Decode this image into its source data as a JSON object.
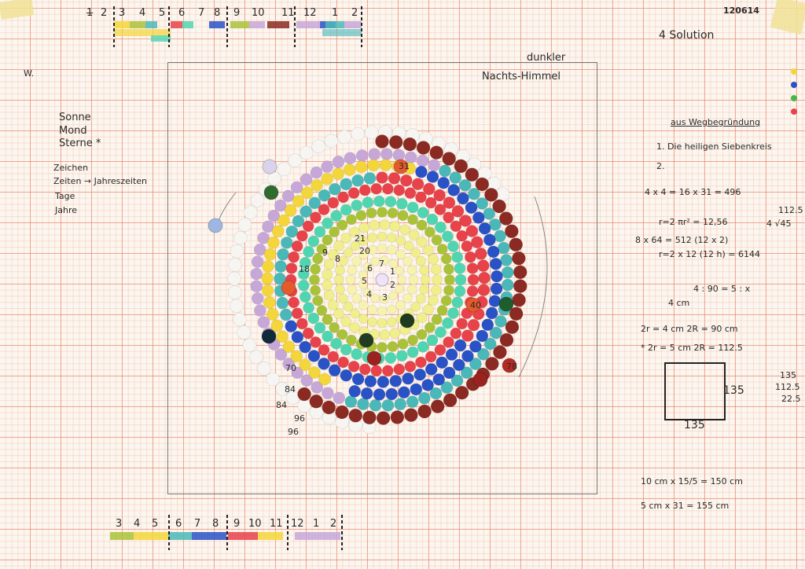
{
  "top_timeline": {
    "labels": [
      "1",
      "2",
      "3",
      "4",
      "5",
      "6",
      "7",
      "8",
      "9",
      "10",
      "11",
      "12",
      "1",
      "2"
    ],
    "struck_label": "1"
  },
  "bottom_timeline": {
    "labels": [
      "3",
      "4",
      "5",
      "6",
      "7",
      "8",
      "9",
      "10",
      "11",
      "12",
      "1",
      "2"
    ]
  },
  "header": {
    "date": "120614",
    "title": "4 Solution",
    "corner_note": "W."
  },
  "frame": {
    "label_1": "dunkler",
    "label_2": "Nachts-Himmel"
  },
  "left_notes": {
    "items": [
      "Sonne",
      "Mond",
      "Sterne *"
    ],
    "signs": [
      "Zeichen",
      "Zeiten → Jahreszeiten",
      "Tage",
      "Jahre"
    ]
  },
  "ring_numbers": [
    "21",
    "20",
    "8",
    "7",
    "6",
    "5",
    "4",
    "3",
    "2",
    "1",
    "9",
    "18",
    "31",
    "40",
    "70",
    "78",
    "84",
    "84",
    "96",
    "96"
  ],
  "right_notes": {
    "heading": "aus Wegbegründung",
    "line1": "1. Die heiligen Siebenkreis",
    "line2": "2.",
    "calc1": "4 x 4 = 16 x 31 = 496",
    "calc2": "r=2  πr² = 12,56",
    "calc3": "8 x 64 = 512 (12 x 2)",
    "calc4": "r=2  x 12 (12 h) = 6144",
    "calc5": "4 : 90 = 5 : x",
    "calc6": "4 cm",
    "calc7": "2r = 4 cm   2R = 90 cm",
    "calc8": "* 2r = 5 cm   2R = 112.5",
    "side1": "112.5",
    "side2": "4 √45",
    "side3": "135",
    "side4": "112.5",
    "side5": "22.5",
    "square_w": "135",
    "square_h": "135",
    "bottom1": "10 cm x 15/5 = 150 cm",
    "bottom2": "5 cm x 31 = 155 cm"
  },
  "palette": {
    "white": "#f7f5f2",
    "lilac": "#c7a7d8",
    "yellow": "#f4d63a",
    "blue": "#2a52c7",
    "teal": "#4ab8b8",
    "red": "#e8424a",
    "mint": "#4fd6b1",
    "olive": "#a9c238",
    "paleyellow": "#f1ee8c",
    "cream": "#f8f2b0",
    "brown": "#8a2a22"
  }
}
